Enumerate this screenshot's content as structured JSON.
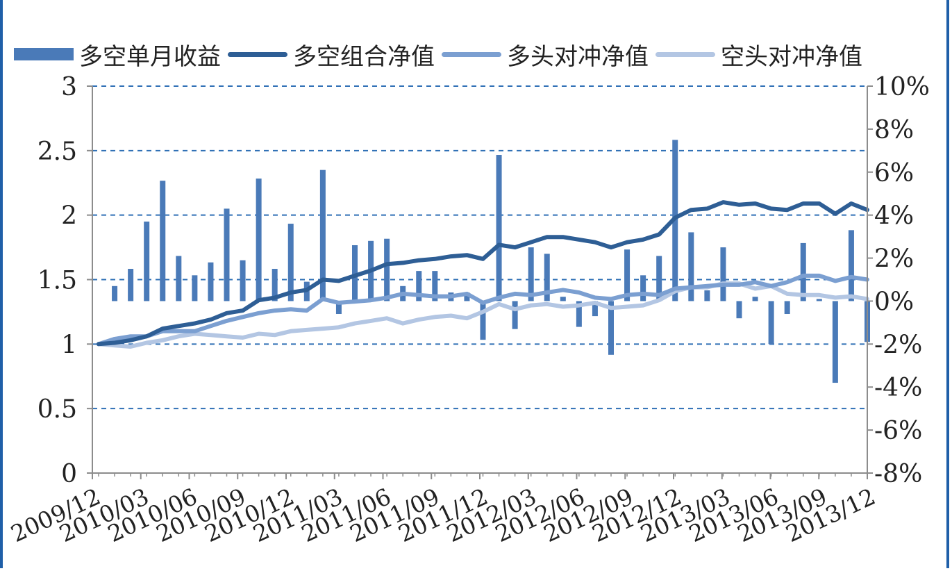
{
  "legend": [
    {
      "label": "多空单月收益",
      "kind": "bar",
      "color": "#4a7ab8"
    },
    {
      "label": "多空组合净值",
      "kind": "line",
      "color": "#2e5e95"
    },
    {
      "label": "多头对冲净值",
      "kind": "line",
      "color": "#7b9fd1"
    },
    {
      "label": "空头对冲净值",
      "kind": "line",
      "color": "#b3c6e3"
    }
  ],
  "chart_data": {
    "type": "bar+line",
    "left_axis": {
      "min": 0,
      "max": 3,
      "ticks": [
        "0",
        "0.5",
        "1",
        "1.5",
        "2",
        "2.5",
        "3"
      ]
    },
    "right_axis": {
      "min": -8,
      "max": 10,
      "unit": "%",
      "ticks": [
        "-8%",
        "-6%",
        "-4%",
        "-2%",
        "0%",
        "2%",
        "4%",
        "6%",
        "8%",
        "10%"
      ]
    },
    "x_tick_labels": [
      "2009/12",
      "2010/03",
      "2010/06",
      "2010/09",
      "2010/12",
      "2011/03",
      "2011/06",
      "2011/09",
      "2011/12",
      "2012/03",
      "2012/06",
      "2012/09",
      "2012/12",
      "2013/03",
      "2013/06",
      "2013/09",
      "2013/12"
    ],
    "grid": "dashed horizontal",
    "legend_position": "top",
    "series": [
      {
        "name": "多空单月收益",
        "type": "bar",
        "axis": "right",
        "color": "#4a7ab8",
        "values": [
          null,
          0.7,
          1.5,
          3.7,
          5.6,
          2.1,
          1.2,
          1.8,
          4.3,
          1.9,
          5.7,
          1.5,
          3.6,
          0.9,
          6.1,
          -0.6,
          2.6,
          2.8,
          2.9,
          0.7,
          1.4,
          1.4,
          0.4,
          0.4,
          -1.8,
          6.8,
          -1.3,
          2.5,
          2.2,
          0.2,
          -1.2,
          -0.7,
          -2.5,
          2.4,
          1.2,
          2.1,
          7.5,
          3.2,
          0.5,
          2.5,
          -0.8,
          0.2,
          -2.0,
          -0.6,
          2.7,
          0.1,
          -3.8,
          3.3,
          -1.9
        ]
      },
      {
        "name": "多空组合净值",
        "type": "line",
        "axis": "left",
        "color": "#2e5e95",
        "values": [
          1.0,
          1.01,
          1.03,
          1.06,
          1.12,
          1.14,
          1.16,
          1.19,
          1.24,
          1.26,
          1.34,
          1.36,
          1.4,
          1.42,
          1.5,
          1.49,
          1.53,
          1.57,
          1.62,
          1.63,
          1.65,
          1.66,
          1.68,
          1.69,
          1.66,
          1.77,
          1.75,
          1.79,
          1.83,
          1.83,
          1.81,
          1.79,
          1.75,
          1.79,
          1.81,
          1.85,
          1.98,
          2.04,
          2.05,
          2.1,
          2.08,
          2.09,
          2.05,
          2.04,
          2.09,
          2.09,
          2.01,
          2.09,
          2.04
        ]
      },
      {
        "name": "多头对冲净值",
        "type": "line",
        "axis": "left",
        "color": "#7b9fd1",
        "values": [
          1.0,
          1.04,
          1.06,
          1.06,
          1.1,
          1.1,
          1.1,
          1.14,
          1.18,
          1.21,
          1.24,
          1.26,
          1.27,
          1.26,
          1.35,
          1.32,
          1.33,
          1.34,
          1.36,
          1.39,
          1.38,
          1.37,
          1.37,
          1.39,
          1.32,
          1.36,
          1.39,
          1.38,
          1.4,
          1.42,
          1.4,
          1.36,
          1.35,
          1.38,
          1.39,
          1.38,
          1.43,
          1.44,
          1.45,
          1.46,
          1.46,
          1.48,
          1.45,
          1.48,
          1.53,
          1.53,
          1.49,
          1.52,
          1.5
        ]
      },
      {
        "name": "空头对冲净值",
        "type": "line",
        "axis": "left",
        "color": "#b3c6e3",
        "values": [
          1.0,
          0.99,
          0.98,
          1.01,
          1.03,
          1.06,
          1.08,
          1.07,
          1.06,
          1.05,
          1.08,
          1.07,
          1.1,
          1.11,
          1.12,
          1.13,
          1.16,
          1.18,
          1.2,
          1.16,
          1.19,
          1.21,
          1.22,
          1.2,
          1.25,
          1.31,
          1.27,
          1.3,
          1.31,
          1.29,
          1.3,
          1.32,
          1.28,
          1.29,
          1.3,
          1.34,
          1.41,
          1.44,
          1.44,
          1.47,
          1.47,
          1.43,
          1.45,
          1.39,
          1.38,
          1.38,
          1.36,
          1.37,
          1.35
        ]
      }
    ]
  }
}
